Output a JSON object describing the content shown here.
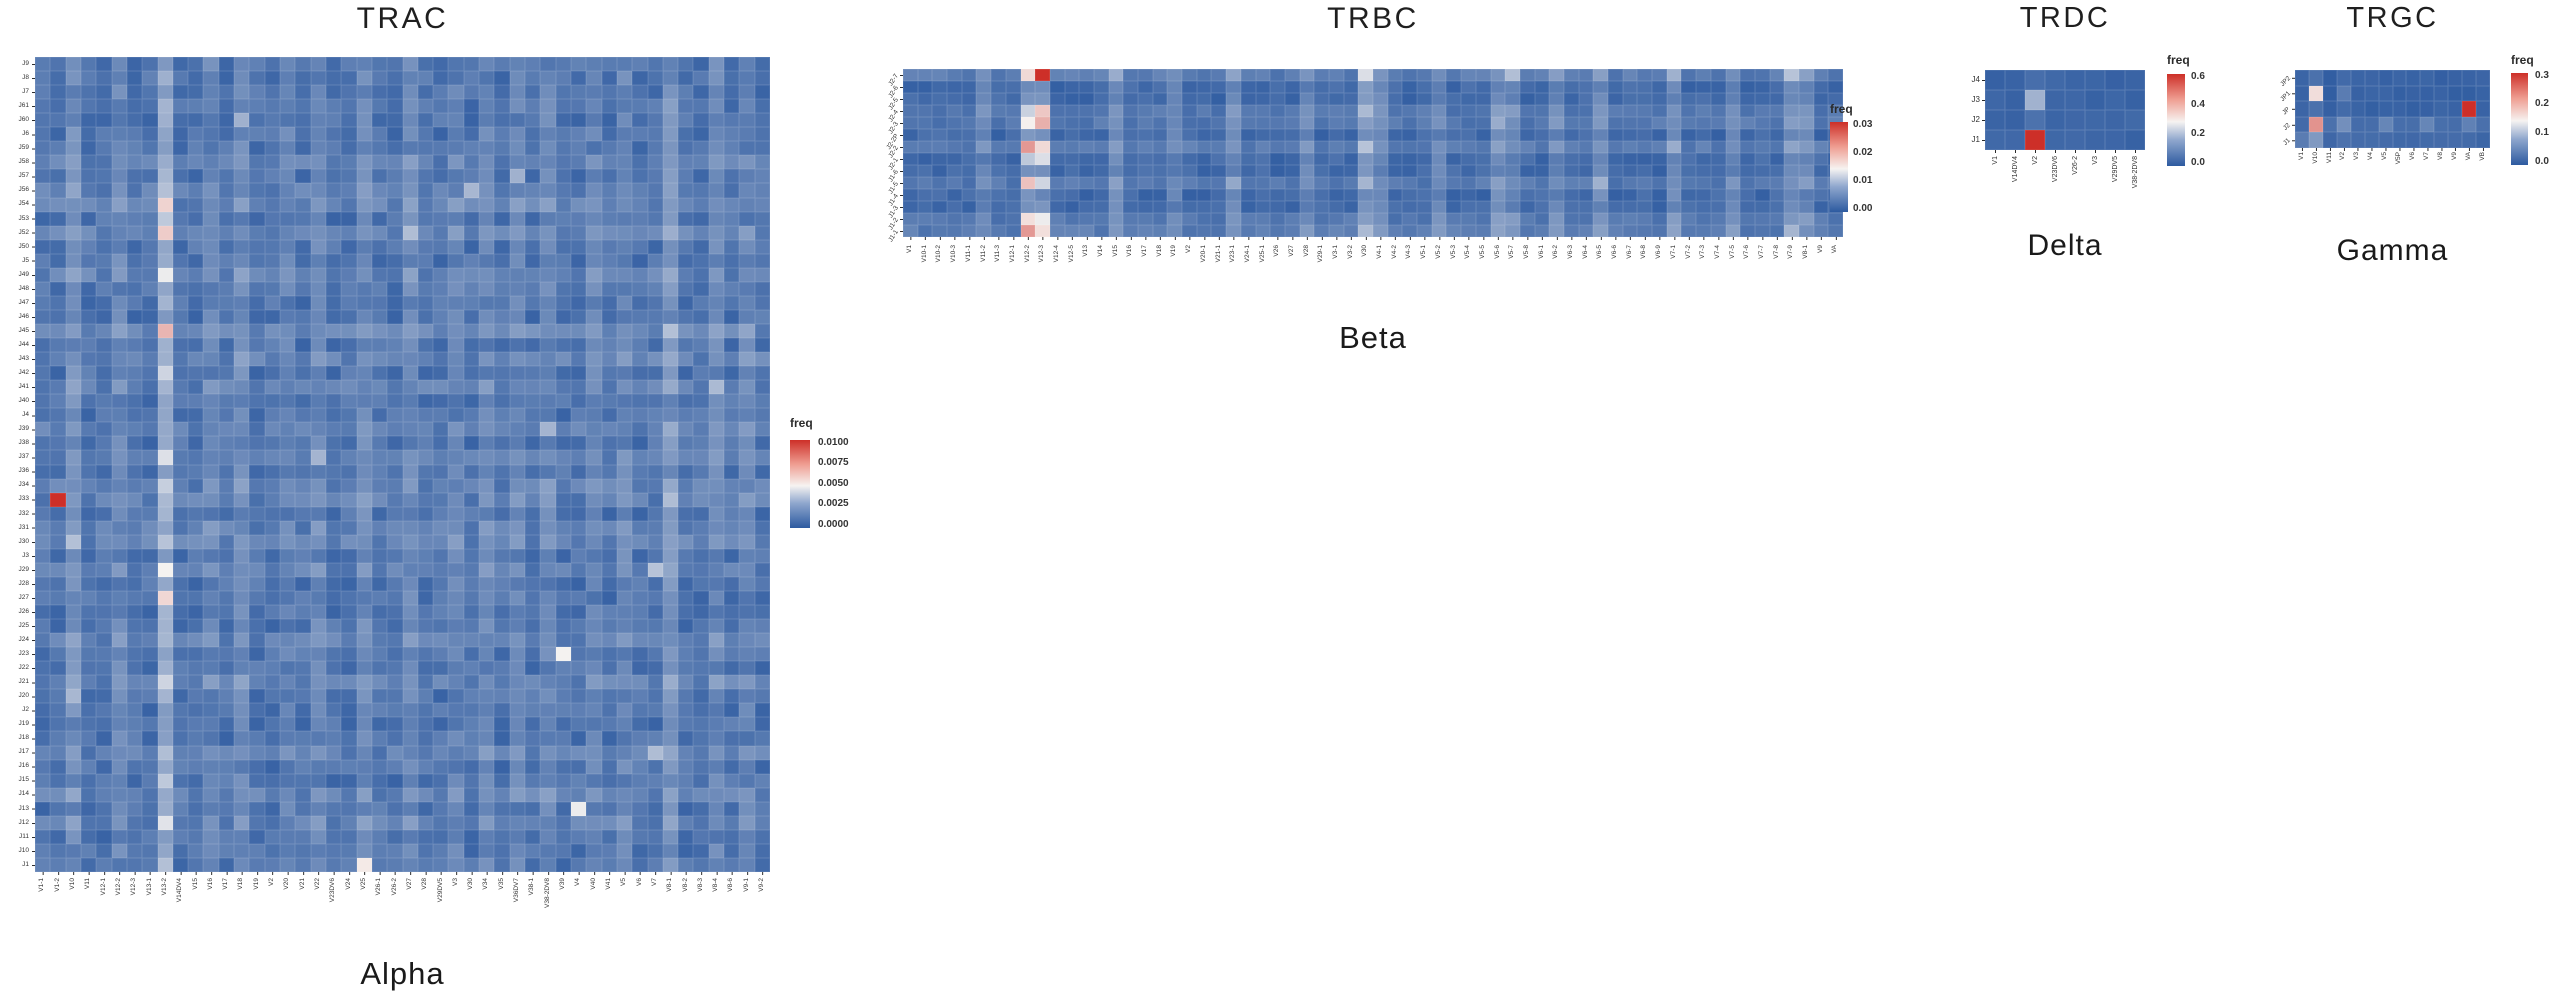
{
  "page": {
    "background": "#ffffff"
  },
  "chart_data": [
    {
      "id": "trac",
      "type": "heatmap",
      "title": "TRAC",
      "subtitle": "Alpha",
      "rows": [
        "J9",
        "J8",
        "J7",
        "J61",
        "J60",
        "J6",
        "J59",
        "J58",
        "J57",
        "J56",
        "J54",
        "J53",
        "J52",
        "J50",
        "J5",
        "J49",
        "J48",
        "J47",
        "J46",
        "J45",
        "J44",
        "J43",
        "J42",
        "J41",
        "J40",
        "J4",
        "J39",
        "J38",
        "J37",
        "J36",
        "J34",
        "J33",
        "J32",
        "J31",
        "J30",
        "J3",
        "J29",
        "J28",
        "J27",
        "J26",
        "J25",
        "J24",
        "J23",
        "J22",
        "J21",
        "J20",
        "J2",
        "J19",
        "J18",
        "J17",
        "J16",
        "J15",
        "J14",
        "J13",
        "J12",
        "J11",
        "J10",
        "J1"
      ],
      "cols": [
        "V1-1",
        "V1-2",
        "V10",
        "V11",
        "V12-1",
        "V12-2",
        "V12-3",
        "V13-1",
        "V13-2",
        "V14DV4",
        "V15",
        "V16",
        "V17",
        "V18",
        "V19",
        "V2",
        "V20",
        "V21",
        "V22",
        "V23DV6",
        "V24",
        "V25",
        "V26-1",
        "V26-2",
        "V27",
        "V28",
        "V29DV5",
        "V3",
        "V30",
        "V34",
        "V35",
        "V36DV7",
        "V38-1",
        "V38-2DV8",
        "V39",
        "V4",
        "V40",
        "V41",
        "V5",
        "V6",
        "V7",
        "V8-1",
        "V8-2",
        "V8-3",
        "V8-4",
        "V8-6",
        "V9-1",
        "V9-2"
      ],
      "legend": {
        "title": "freq",
        "ticks": [
          "0.0100",
          "0.0075",
          "0.0050",
          "0.0025",
          "0.0000"
        ],
        "vmax": 0.0105
      },
      "palette": {
        "low": "#2d5aa0",
        "mid": "#f6f3f1",
        "high": "#cd2f28"
      },
      "baseline": 0.0003,
      "noise_amp": 0.0011,
      "seed": 7,
      "col_boost": {
        "2": 0.0008,
        "5": 0.0006,
        "8": 0.0018,
        "11": 0.0006,
        "13": 0.0007,
        "16": 0.0005,
        "18": 0.0006,
        "21": 0.0007,
        "24": 0.0006,
        "27": 0.0005,
        "29": 0.0006,
        "31": 0.0005,
        "33": 0.0006,
        "36": 0.0005,
        "38": 0.0006,
        "41": 0.001,
        "44": 0.0006,
        "46": 0.0005
      },
      "row_boost": {
        "7": 0.0004,
        "9": 0.0004,
        "10": 0.0005,
        "12": 0.0005,
        "15": 0.0005,
        "19": 0.0007,
        "21": 0.0005,
        "23": 0.0004,
        "26": 0.0004,
        "28": 0.0005,
        "30": 0.0004,
        "31": 0.0004,
        "33": 0.0004,
        "34": 0.0005,
        "36": 0.0004,
        "41": 0.0004,
        "44": 0.0005,
        "49": 0.0004,
        "52": 0.0005,
        "54": 0.0004
      },
      "hotspots": [
        [
          31,
          1,
          0.0105
        ],
        [
          10,
          8,
          0.0061
        ],
        [
          11,
          8,
          0.0038
        ],
        [
          12,
          8,
          0.0063
        ],
        [
          15,
          8,
          0.005
        ],
        [
          19,
          8,
          0.0069
        ],
        [
          22,
          8,
          0.0042
        ],
        [
          28,
          8,
          0.0046
        ],
        [
          30,
          8,
          0.004
        ],
        [
          34,
          8,
          0.0036
        ],
        [
          36,
          8,
          0.0052
        ],
        [
          38,
          8,
          0.006
        ],
        [
          44,
          8,
          0.0042
        ],
        [
          51,
          8,
          0.0038
        ],
        [
          54,
          8,
          0.0047
        ],
        [
          57,
          8,
          0.0035
        ],
        [
          42,
          34,
          0.0052
        ],
        [
          53,
          35,
          0.005
        ],
        [
          57,
          21,
          0.0055
        ],
        [
          34,
          2,
          0.0035
        ],
        [
          45,
          2,
          0.0032
        ],
        [
          4,
          13,
          0.003
        ],
        [
          9,
          28,
          0.0032
        ],
        [
          19,
          41,
          0.0035
        ],
        [
          31,
          41,
          0.0034
        ],
        [
          23,
          44,
          0.0033
        ],
        [
          12,
          24,
          0.0034
        ],
        [
          28,
          18,
          0.0031
        ],
        [
          36,
          40,
          0.0036
        ],
        [
          49,
          40,
          0.0034
        ],
        [
          8,
          31,
          0.003
        ],
        [
          26,
          33,
          0.0031
        ]
      ]
    },
    {
      "id": "trbc",
      "type": "heatmap",
      "title": "TRBC",
      "subtitle": "Beta",
      "rows": [
        "J2-7",
        "J2-6",
        "J2-5",
        "J2-4",
        "J2-3",
        "J2-2P",
        "J2-2",
        "J2-1",
        "J1-6",
        "J1-5",
        "J1-4",
        "J1-3",
        "J1-2",
        "J1-1"
      ],
      "cols": [
        "V1",
        "V10-1",
        "V10-2",
        "V10-3",
        "V11-1",
        "V11-2",
        "V11-3",
        "V12-1",
        "V12-2",
        "V12-3",
        "V12-4",
        "V12-5",
        "V13",
        "V14",
        "V15",
        "V16",
        "V17",
        "V18",
        "V19",
        "V2",
        "V20-1",
        "V21-1",
        "V23-1",
        "V24-1",
        "V25-1",
        "V26",
        "V27",
        "V28",
        "V29-1",
        "V3-1",
        "V3-2",
        "V30",
        "V4-1",
        "V4-2",
        "V4-3",
        "V5-1",
        "V5-2",
        "V5-3",
        "V5-4",
        "V5-5",
        "V5-6",
        "V5-7",
        "V5-8",
        "V6-1",
        "V6-2",
        "V6-3",
        "V6-4",
        "V6-5",
        "V6-6",
        "V6-7",
        "V6-8",
        "V6-9",
        "V7-1",
        "V7-2",
        "V7-3",
        "V7-4",
        "V7-5",
        "V7-6",
        "V7-7",
        "V7-8",
        "V7-9",
        "V8-1",
        "V9",
        "VA"
      ],
      "legend": {
        "title": "freq",
        "ticks": [
          "0.03",
          "0.02",
          "0.01",
          "0.00"
        ],
        "vmax": 0.0335
      },
      "palette": {
        "low": "#2d5aa0",
        "mid": "#f6f3f1",
        "high": "#cd2f28"
      },
      "baseline": 0.0006,
      "noise_amp": 0.0022,
      "seed": 11,
      "col_boost": {
        "5": 0.0025,
        "8": 0.004,
        "9": 0.004,
        "14": 0.0035,
        "18": 0.0025,
        "22": 0.003,
        "27": 0.0028,
        "31": 0.0045,
        "32": 0.003,
        "36": 0.0028,
        "40": 0.0035,
        "41": 0.003,
        "44": 0.0028,
        "47": 0.0035,
        "52": 0.0032,
        "56": 0.0028,
        "60": 0.0035,
        "61": 0.003
      },
      "row_boost": {
        "0": 0.002,
        "3": 0.0016,
        "4": 0.0016,
        "6": 0.002,
        "9": 0.0016,
        "12": 0.0016,
        "13": 0.002
      },
      "hotspots": [
        [
          0,
          8,
          0.019
        ],
        [
          0,
          9,
          0.0335
        ],
        [
          3,
          8,
          0.013
        ],
        [
          3,
          9,
          0.0205
        ],
        [
          4,
          8,
          0.017
        ],
        [
          4,
          9,
          0.0225
        ],
        [
          6,
          8,
          0.0245
        ],
        [
          6,
          9,
          0.019
        ],
        [
          7,
          8,
          0.012
        ],
        [
          7,
          9,
          0.0145
        ],
        [
          9,
          8,
          0.021
        ],
        [
          9,
          9,
          0.0135
        ],
        [
          12,
          8,
          0.0185
        ],
        [
          12,
          9,
          0.016
        ],
        [
          13,
          8,
          0.0245
        ],
        [
          13,
          9,
          0.0185
        ],
        [
          0,
          14,
          0.009
        ],
        [
          0,
          22,
          0.008
        ],
        [
          0,
          31,
          0.0145
        ],
        [
          0,
          41,
          0.011
        ],
        [
          0,
          52,
          0.0095
        ],
        [
          0,
          60,
          0.0115
        ],
        [
          3,
          31,
          0.0105
        ],
        [
          6,
          31,
          0.0115
        ],
        [
          9,
          31,
          0.01
        ],
        [
          13,
          31,
          0.0105
        ],
        [
          4,
          40,
          0.009
        ],
        [
          9,
          47,
          0.0095
        ],
        [
          6,
          52,
          0.009
        ],
        [
          13,
          60,
          0.01
        ],
        [
          9,
          22,
          0.0085
        ]
      ]
    },
    {
      "id": "trdc",
      "type": "heatmap",
      "title": "TRDC",
      "subtitle": "Delta",
      "rows": [
        "J4",
        "J3",
        "J2",
        "J1"
      ],
      "cols": [
        "V1",
        "V14DV4",
        "V2",
        "V23DV6",
        "V26-2",
        "V3",
        "V29DV5",
        "V38-2DV8"
      ],
      "legend": {
        "title": "freq",
        "ticks": [
          "0.6",
          "0.4",
          "0.2",
          "0.0"
        ],
        "vmax": 0.66
      },
      "palette": {
        "low": "#2d5aa0",
        "mid": "#f6f3f1",
        "high": "#cd2f28"
      },
      "baseline": 0.01,
      "noise_amp": 0.025,
      "seed": 3,
      "col_boost": {
        "2": 0.02
      },
      "row_boost": {},
      "hotspots": [
        [
          3,
          2,
          0.66
        ],
        [
          1,
          2,
          0.19
        ]
      ]
    },
    {
      "id": "trgc",
      "type": "heatmap",
      "title": "TRGC",
      "subtitle": "Gamma",
      "rows": [
        "JP2",
        "JP1",
        "JP",
        "J2",
        "J1"
      ],
      "cols": [
        "V1",
        "V10",
        "V11",
        "V2",
        "V3",
        "V4",
        "V5",
        "V5P",
        "V6",
        "V7",
        "V8",
        "V9",
        "VA",
        "VB"
      ],
      "legend": {
        "title": "freq",
        "ticks": [
          "0.3",
          "0.2",
          "0.1",
          "0.0"
        ],
        "vmax": 0.315
      },
      "palette": {
        "low": "#2d5aa0",
        "mid": "#f6f3f1",
        "high": "#cd2f28"
      },
      "baseline": 0.004,
      "noise_amp": 0.008,
      "seed": 5,
      "col_boost": {
        "1": 0.012,
        "3": 0.008
      },
      "row_boost": {
        "3": 0.012,
        "4": 0.008
      },
      "hotspots": [
        [
          1,
          1,
          0.175
        ],
        [
          1,
          3,
          0.035
        ],
        [
          2,
          12,
          0.315
        ],
        [
          3,
          1,
          0.235
        ],
        [
          3,
          3,
          0.055
        ],
        [
          3,
          6,
          0.045
        ],
        [
          3,
          9,
          0.045
        ],
        [
          3,
          12,
          0.04
        ],
        [
          4,
          0,
          0.035
        ],
        [
          4,
          1,
          0.065
        ]
      ]
    }
  ]
}
